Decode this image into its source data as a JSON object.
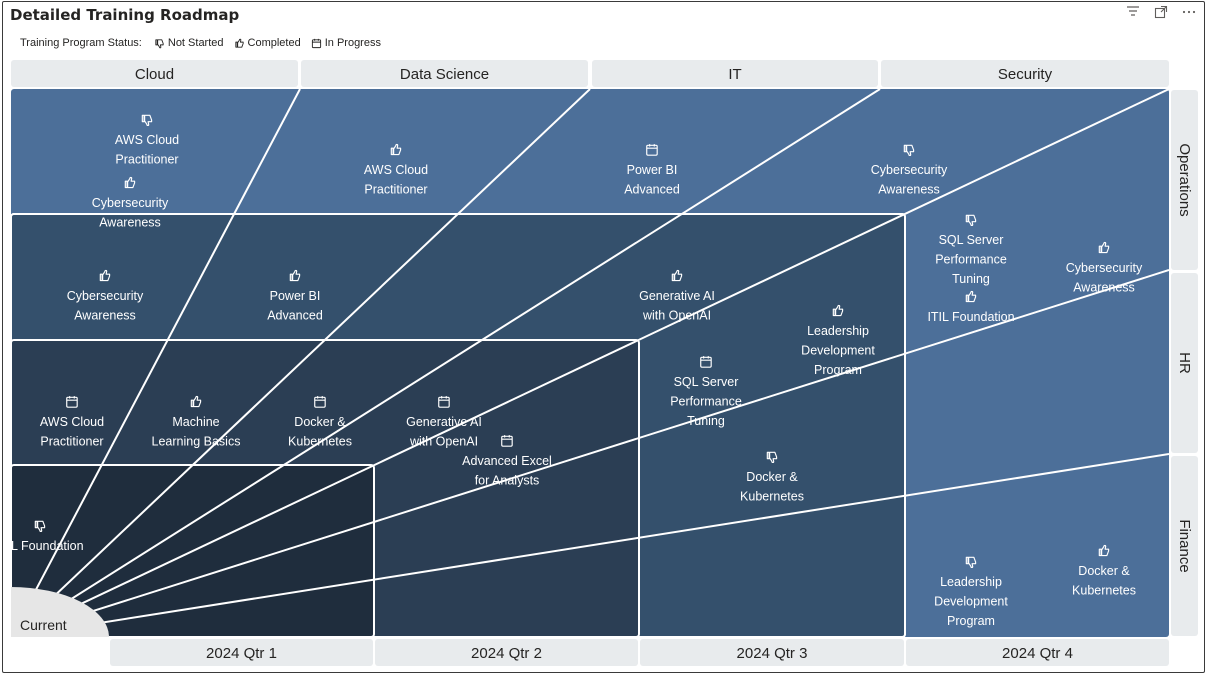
{
  "visual": {
    "title": "Detailed Training Roadmap",
    "toolbar": [
      {
        "name": "filter-icon"
      },
      {
        "name": "focus-mode-icon"
      },
      {
        "name": "more-options-icon"
      }
    ]
  },
  "legend": {
    "title": "Training Program Status:",
    "items": [
      {
        "label": "Not Started",
        "icon": "thumbs-down-icon"
      },
      {
        "label": "Completed",
        "icon": "thumbs-up-icon"
      },
      {
        "label": "In Progress",
        "icon": "calendar-icon"
      }
    ]
  },
  "colors": {
    "header_bg": "#e8ebed",
    "ring_1": "#1f2d3d",
    "ring_2": "#2b3e54",
    "ring_3": "#34506c",
    "ring_4": "#3f5f84",
    "ring_5": "#4c6f99",
    "center": "#e6e6e6",
    "lines": "#ffffff"
  },
  "chart_data": {
    "type": "radial-roadmap",
    "categories_top": [
      "Cloud",
      "Data Science",
      "IT",
      "Security"
    ],
    "categories_right": [
      "Operations",
      "HR",
      "Finance"
    ],
    "time_buckets": [
      "2024 Qtr 1",
      "2024 Qtr 2",
      "2024 Qtr 3",
      "2024 Qtr 4"
    ],
    "center_label": "Current",
    "items": [
      {
        "label": "AWS Cloud Practitioner",
        "status": "Not Started"
      },
      {
        "label": "Cybersecurity Awareness",
        "status": "Completed"
      },
      {
        "label": "AWS Cloud Practitioner",
        "status": "Completed"
      },
      {
        "label": "Power BI Advanced",
        "status": "In Progress"
      },
      {
        "label": "Cybersecurity Awareness",
        "status": "Not Started"
      },
      {
        "label": "Cybersecurity Awareness",
        "status": "Completed"
      },
      {
        "label": "Power BI Advanced",
        "status": "Completed"
      },
      {
        "label": "Generative AI with OpenAI",
        "status": "Completed"
      },
      {
        "label": "SQL Server Performance Tuning",
        "status": "Not Started"
      },
      {
        "label": "ITIL Foundation",
        "status": "Completed"
      },
      {
        "label": "Cybersecurity Awareness",
        "status": "Completed"
      },
      {
        "label": "Leadership Development Program",
        "status": "Completed"
      },
      {
        "label": "AWS Cloud Practitioner",
        "status": "In Progress"
      },
      {
        "label": "Machine Learning Basics",
        "status": "Completed"
      },
      {
        "label": "Docker & Kubernetes",
        "status": "In Progress"
      },
      {
        "label": "Generative AI with OpenAI",
        "status": "In Progress"
      },
      {
        "label": "Advanced Excel for Analysts",
        "status": "In Progress"
      },
      {
        "label": "SQL Server Performance Tuning",
        "status": "In Progress"
      },
      {
        "label": "Docker & Kubernetes",
        "status": "Not Started"
      },
      {
        "label": "ITIL Foundation",
        "status": "Not Started"
      },
      {
        "label": "Leadership Development Program",
        "status": "Not Started"
      },
      {
        "label": "Docker & Kubernetes",
        "status": "Completed"
      }
    ]
  }
}
